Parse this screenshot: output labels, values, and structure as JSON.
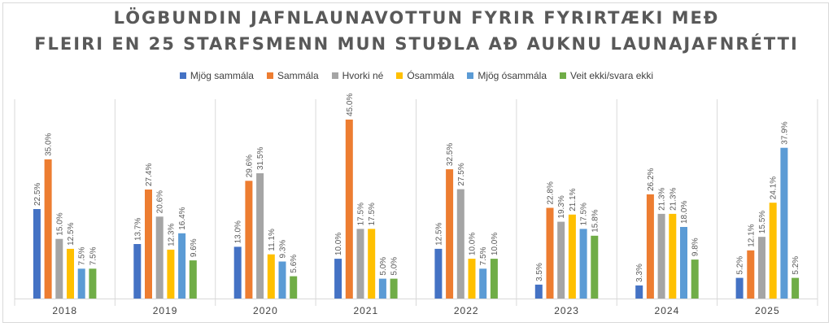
{
  "chart_data": {
    "type": "bar",
    "title_line1": "LÖGBUNDIN JAFNLAUNAVOTTUN FYRIR FYRIRTÆKI MEÐ",
    "title_line2": "FLEIRI EN 25 STARFSMENN MUN STUÐLA AÐ AUKNU LAUNAJAFNRÉTTI",
    "categories": [
      "2018",
      "2019",
      "2020",
      "2021",
      "2022",
      "2023",
      "2024",
      "2025"
    ],
    "series": [
      {
        "name": "Mjög sammála",
        "color": "#4472c4",
        "values": [
          22.5,
          13.7,
          13.0,
          10.0,
          12.5,
          3.5,
          3.3,
          5.2
        ]
      },
      {
        "name": "Sammála",
        "color": "#ed7d31",
        "values": [
          35.0,
          27.4,
          29.6,
          45.0,
          32.5,
          22.8,
          26.2,
          12.1
        ]
      },
      {
        "name": "Hvorki né",
        "color": "#a5a5a5",
        "values": [
          15.0,
          20.6,
          31.5,
          17.5,
          27.5,
          19.3,
          21.3,
          15.5
        ]
      },
      {
        "name": "Ósammála",
        "color": "#ffc000",
        "values": [
          12.5,
          12.3,
          11.1,
          17.5,
          10.0,
          21.1,
          21.3,
          24.1
        ]
      },
      {
        "name": "Mjög ósammála",
        "color": "#5b9bd5",
        "values": [
          7.5,
          16.4,
          9.3,
          5.0,
          7.5,
          17.5,
          18.0,
          37.9
        ]
      },
      {
        "name": "Veit ekki/svara ekki",
        "color": "#70ad47",
        "values": [
          7.5,
          9.6,
          5.6,
          5.0,
          10.0,
          15.8,
          9.8,
          5.2
        ]
      }
    ],
    "value_suffix": "%",
    "ylim": [
      0,
      45
    ],
    "grid": false,
    "legend_position": "top"
  }
}
